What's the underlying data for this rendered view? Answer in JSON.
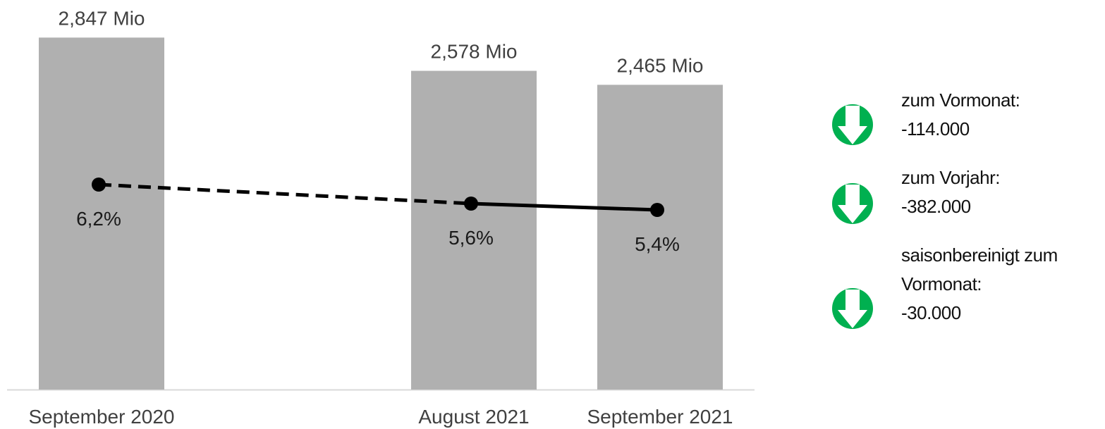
{
  "chart_data": {
    "type": "bar",
    "categories": [
      "September 2020",
      "August 2021",
      "September 2021"
    ],
    "bar_values": [
      2.847,
      2.578,
      2.465
    ],
    "bar_labels": [
      "2,847 Mio",
      "2,578 Mio",
      "2,465 Mio"
    ],
    "rate_values": [
      6.2,
      5.6,
      5.4
    ],
    "rate_labels": [
      "6,2%",
      "5,6%",
      "5,4%"
    ],
    "colors": {
      "bar": "#b0b0b0",
      "line": "#000000",
      "axis": "#d9d9d9",
      "arrow": "#00b050"
    },
    "changes": [
      {
        "lines": [
          "zum Vormonat:",
          "-114.000"
        ],
        "icon": "arrow-down-icon"
      },
      {
        "lines": [
          "zum Vorjahr:",
          "-382.000"
        ],
        "icon": "arrow-down-icon"
      },
      {
        "lines": [
          "saisonbereinigt zum",
          "Vormonat:",
          "-30.000"
        ],
        "icon": "arrow-down-icon"
      }
    ]
  }
}
